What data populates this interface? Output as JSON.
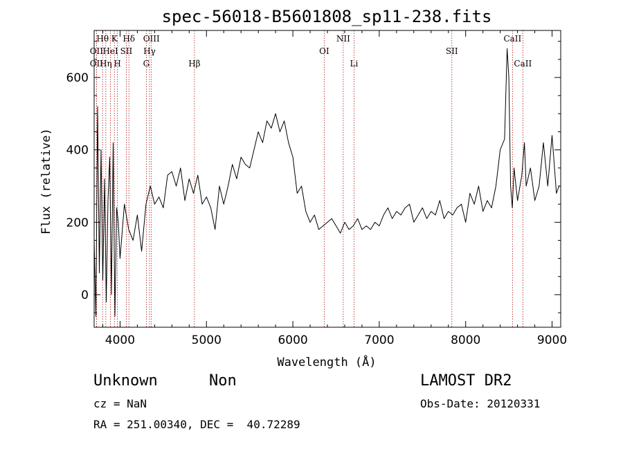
{
  "chart_data": {
    "type": "line",
    "title": "spec-56018-B5601808_sp11-238.fits",
    "xlabel": "Wavelength (Å)",
    "ylabel": "Flux (relative)",
    "xlim": [
      3700,
      9100
    ],
    "ylim": [
      -90,
      730
    ],
    "xticks": [
      4000,
      5000,
      6000,
      7000,
      8000,
      9000
    ],
    "yticks": [
      0,
      200,
      400,
      600
    ],
    "grid": false,
    "series": [
      {
        "x": [
          3700,
          3720,
          3740,
          3760,
          3780,
          3800,
          3820,
          3840,
          3860,
          3880,
          3900,
          3920,
          3940,
          3960,
          3980,
          4000,
          4050,
          4100,
          4150,
          4200,
          4250,
          4300,
          4350,
          4400,
          4450,
          4500,
          4550,
          4600,
          4650,
          4700,
          4750,
          4800,
          4850,
          4900,
          4950,
          5000,
          5050,
          5100,
          5150,
          5200,
          5250,
          5300,
          5350,
          5400,
          5450,
          5500,
          5550,
          5600,
          5650,
          5700,
          5750,
          5800,
          5850,
          5900,
          5950,
          6000,
          6050,
          6100,
          6150,
          6200,
          6250,
          6300,
          6350,
          6400,
          6450,
          6500,
          6550,
          6600,
          6650,
          6700,
          6750,
          6800,
          6850,
          6900,
          6950,
          7000,
          7050,
          7100,
          7150,
          7200,
          7250,
          7300,
          7350,
          7400,
          7450,
          7500,
          7550,
          7600,
          7650,
          7700,
          7750,
          7800,
          7850,
          7900,
          7950,
          8000,
          8050,
          8100,
          8150,
          8200,
          8250,
          8300,
          8350,
          8400,
          8450,
          8480,
          8500,
          8520,
          8540,
          8560,
          8600,
          8650,
          8680,
          8700,
          8750,
          8800,
          8850,
          8900,
          8950,
          9000,
          9050,
          9080
        ],
        "y": [
          150,
          -60,
          520,
          60,
          400,
          40,
          320,
          -20,
          260,
          380,
          0,
          420,
          -60,
          240,
          200,
          100,
          250,
          180,
          150,
          220,
          120,
          250,
          300,
          250,
          270,
          240,
          330,
          340,
          300,
          350,
          260,
          320,
          280,
          330,
          250,
          270,
          240,
          180,
          300,
          250,
          300,
          360,
          320,
          380,
          360,
          350,
          400,
          450,
          420,
          480,
          460,
          500,
          450,
          480,
          420,
          380,
          280,
          300,
          230,
          200,
          220,
          180,
          190,
          200,
          210,
          190,
          170,
          200,
          180,
          190,
          210,
          180,
          190,
          180,
          200,
          190,
          220,
          240,
          210,
          230,
          220,
          240,
          250,
          200,
          220,
          240,
          210,
          230,
          220,
          260,
          210,
          230,
          220,
          240,
          250,
          200,
          280,
          250,
          300,
          230,
          260,
          240,
          300,
          400,
          430,
          680,
          600,
          300,
          240,
          350,
          260,
          330,
          420,
          300,
          350,
          260,
          300,
          420,
          300,
          440,
          280,
          300
        ]
      }
    ],
    "lines": [
      {
        "label": "Hθ",
        "wavelength": 3798,
        "row": 0
      },
      {
        "label": "OII",
        "wavelength": 3727,
        "row": 1
      },
      {
        "label": "OII",
        "wavelength": 3727,
        "row": 2
      },
      {
        "label": "HeI",
        "wavelength": 3889,
        "row": 1
      },
      {
        "label": "Hη",
        "wavelength": 3835,
        "row": 2
      },
      {
        "label": "K",
        "wavelength": 3934,
        "row": 0
      },
      {
        "label": "H",
        "wavelength": 3969,
        "row": 2
      },
      {
        "label": "SII",
        "wavelength": 4072,
        "row": 1
      },
      {
        "label": "Hδ",
        "wavelength": 4102,
        "row": 0
      },
      {
        "label": "OIII",
        "wavelength": 4363,
        "row": 0
      },
      {
        "label": "Hγ",
        "wavelength": 4341,
        "row": 1
      },
      {
        "label": "G",
        "wavelength": 4304,
        "row": 2
      },
      {
        "label": "Hβ",
        "wavelength": 4861,
        "row": 2
      },
      {
        "label": "OI",
        "wavelength": 6363,
        "row": 1
      },
      {
        "label": "NII",
        "wavelength": 6583,
        "row": 0
      },
      {
        "label": "Li",
        "wavelength": 6708,
        "row": 2
      },
      {
        "label": "SII",
        "wavelength": 7840,
        "row": 1
      },
      {
        "label": "CaII",
        "wavelength": 8542,
        "row": 0
      },
      {
        "label": "CaII",
        "wavelength": 8662,
        "row": 2
      }
    ]
  },
  "footer": {
    "class_label": "Unknown",
    "subclass_label": "Non",
    "cz_text": "cz = NaN",
    "coords_text": "RA = 251.00340, DEC =  40.72289",
    "survey_label": "LAMOST DR2",
    "obs_date_text": "Obs-Date: 20120331"
  }
}
